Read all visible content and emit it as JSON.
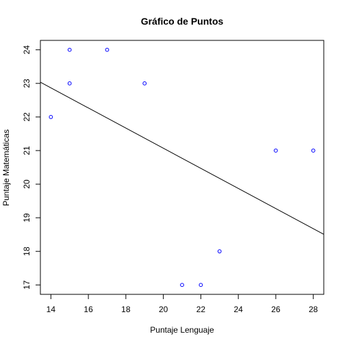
{
  "chart_data": {
    "type": "scatter",
    "title": "Gráfico de Puntos",
    "xlabel": "Puntaje Lenguaje",
    "ylabel": "Puntaje Matemáticas",
    "xlim": [
      13.44,
      28.56
    ],
    "ylim": [
      16.72,
      24.28
    ],
    "xticks": [
      14,
      16,
      18,
      20,
      22,
      24,
      26,
      28
    ],
    "yticks": [
      17,
      18,
      19,
      20,
      21,
      22,
      23,
      24
    ],
    "grid": false,
    "legend": "none",
    "point_color": "#0000ff",
    "line_color": "#000000",
    "series": [
      {
        "points": [
          {
            "x": 14,
            "y": 22
          },
          {
            "x": 15,
            "y": 24
          },
          {
            "x": 15,
            "y": 23
          },
          {
            "x": 17,
            "y": 24
          },
          {
            "x": 19,
            "y": 23
          },
          {
            "x": 21,
            "y": 17
          },
          {
            "x": 22,
            "y": 17
          },
          {
            "x": 23,
            "y": 18
          },
          {
            "x": 26,
            "y": 21
          },
          {
            "x": 28,
            "y": 21
          }
        ]
      }
    ],
    "regression_line": {
      "intercept": 27.06,
      "slope": -0.2995
    }
  }
}
